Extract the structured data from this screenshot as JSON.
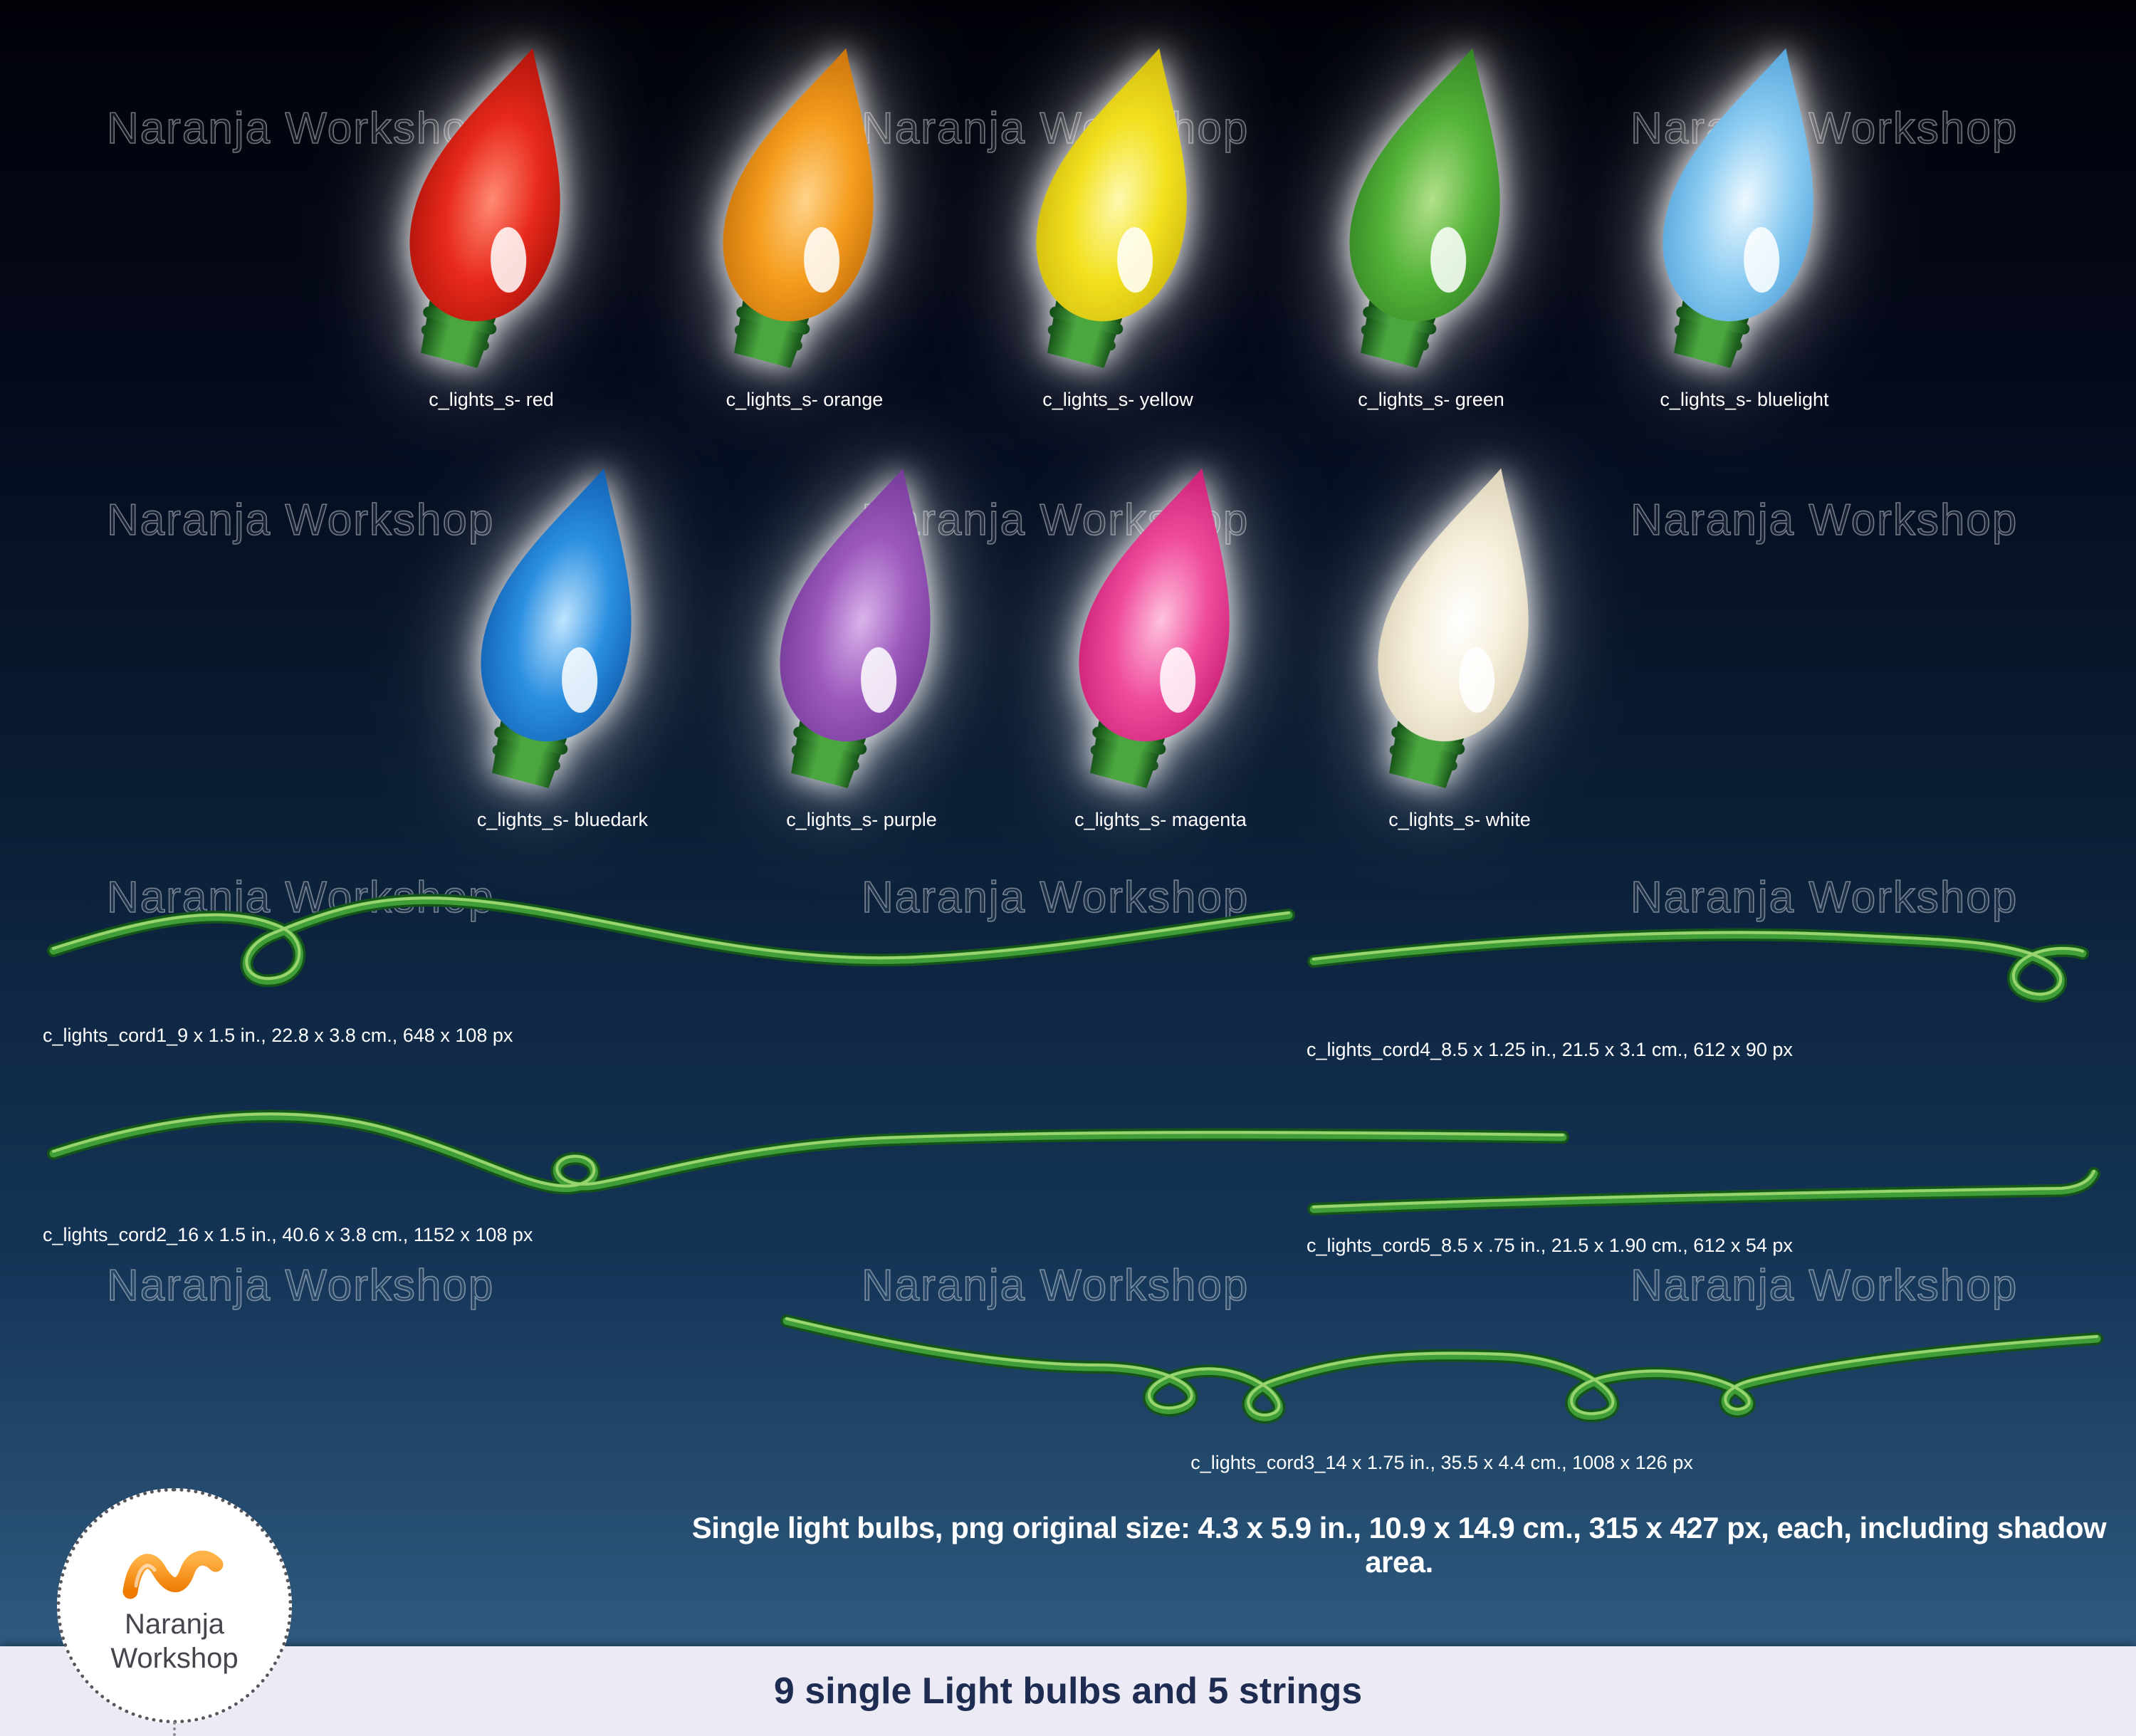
{
  "watermark": "Naranja Workshop",
  "bulbs": [
    {
      "label": "c_lights_s- red",
      "light": "#ff8a73",
      "mid": "#e8291c",
      "dark": "#a30f06"
    },
    {
      "label": "c_lights_s- orange",
      "light": "#ffd38a",
      "mid": "#f59d1e",
      "dark": "#c06a08"
    },
    {
      "label": "c_lights_s- yellow",
      "light": "#fdf9b0",
      "mid": "#f3e11f",
      "dark": "#c8b20a"
    },
    {
      "label": "c_lights_s- green",
      "light": "#b2e08a",
      "mid": "#55b43a",
      "dark": "#2d7d1f"
    },
    {
      "label": "c_lights_s- bluelight",
      "light": "#eef9ff",
      "mid": "#8ecdf2",
      "dark": "#4a9ed8"
    },
    {
      "label": "c_lights_s- bluedark",
      "light": "#bfe4ff",
      "mid": "#2b8fe0",
      "dark": "#0b55a8"
    },
    {
      "label": "c_lights_s- purple",
      "light": "#d9b3ea",
      "mid": "#9c59bd",
      "dark": "#6c3390"
    },
    {
      "label": "c_lights_s- magenta",
      "light": "#ffc2de",
      "mid": "#ef4c9c",
      "dark": "#c2166f"
    },
    {
      "label": "c_lights_s- white",
      "light": "#ffffff",
      "mid": "#f6efdc",
      "dark": "#d6ccb0"
    }
  ],
  "base_colors": {
    "dark": "#0e4713",
    "light": "#4aa63f"
  },
  "cord_colors": {
    "shadow": "#14541a",
    "main": "#3f9e38",
    "highlight": "#9ad46e"
  },
  "cords": [
    {
      "label": "c_lights_cord1_9 x 1.5 in., 22.8 x 3.8 cm., 648 x 108 px"
    },
    {
      "label": "c_lights_cord4_8.5 x 1.25 in., 21.5 x 3.1 cm., 612 x 90 px"
    },
    {
      "label": "c_lights_cord2_16 x 1.5 in., 40.6 x 3.8 cm., 1152 x 108 px"
    },
    {
      "label": "c_lights_cord5_8.5 x .75 in., 21.5 x 1.90 cm.,  612 x 54 px"
    },
    {
      "label": "c_lights_cord3_14 x 1.75 in., 35.5 x 4.4 cm.,  1008 x 126 px"
    }
  ],
  "note": "Single light bulbs, png original size: 4.3 x 5.9 in., 10.9 x 14.9 cm., 315 x 427 px, each, including shadow area.",
  "footer": {
    "title": "9 single Light bulbs and 5 strings"
  },
  "logo": {
    "line1": "Naranja",
    "line2": "Workshop",
    "accent": "#f7941d",
    "accent_dark": "#ee7a00"
  }
}
